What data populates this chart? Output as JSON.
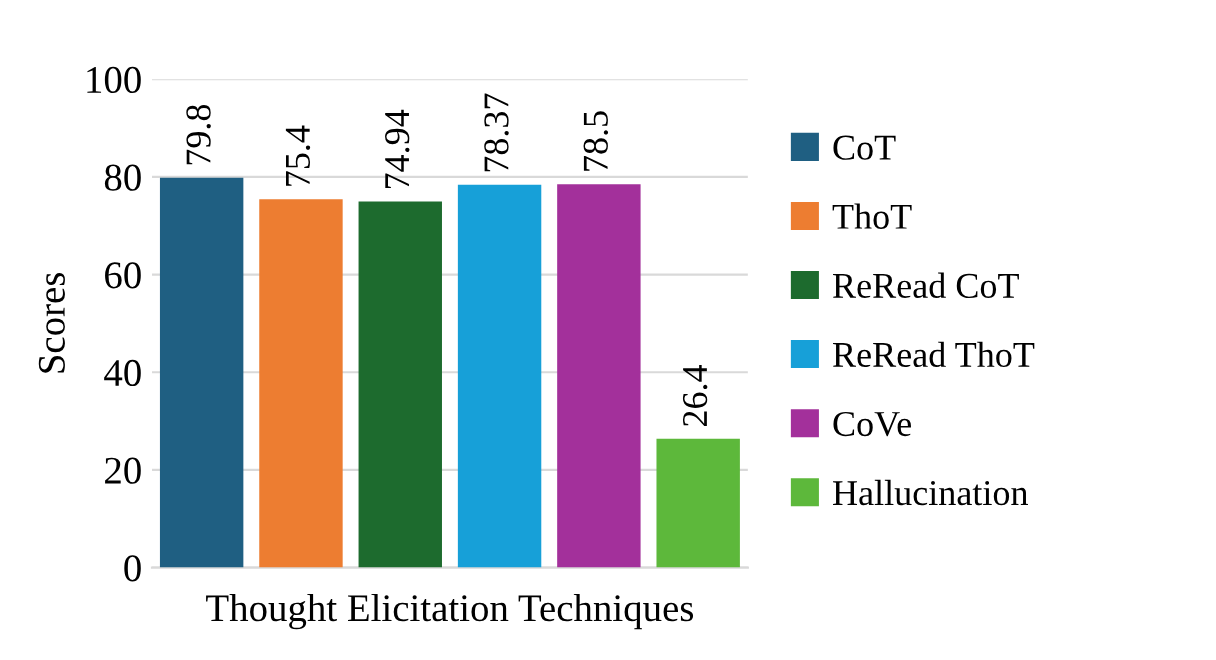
{
  "chart_data": {
    "type": "bar",
    "xlabel": "Thought Elicitation Techniques",
    "ylabel": "Scores",
    "categories": [
      null,
      null,
      null,
      null,
      null,
      null
    ],
    "series": [
      {
        "name": "CoT",
        "color": "#1f5f82",
        "values": [
          79.8,
          null,
          null,
          null,
          null,
          null
        ]
      },
      {
        "name": "ThoT",
        "color": "#ed7d31",
        "values": [
          null,
          75.4,
          null,
          null,
          null,
          null
        ]
      },
      {
        "name": "ReRead CoT",
        "color": "#1d6b2e",
        "values": [
          null,
          null,
          74.94,
          null,
          null,
          null
        ]
      },
      {
        "name": "ReRead ThoT",
        "color": "#17a0d8",
        "values": [
          null,
          null,
          null,
          78.37,
          null,
          null
        ]
      },
      {
        "name": "CoVe",
        "color": "#a3309b",
        "values": [
          null,
          null,
          null,
          null,
          78.5,
          null
        ]
      },
      {
        "name": "Hallucination",
        "color": "#5db83b",
        "values": [
          null,
          null,
          null,
          null,
          null,
          26.4
        ]
      }
    ],
    "ylim": [
      0,
      100
    ],
    "yticks": [
      0,
      20,
      40,
      60,
      80,
      100
    ],
    "grid": "y",
    "legend": "right",
    "data_labels": true
  }
}
